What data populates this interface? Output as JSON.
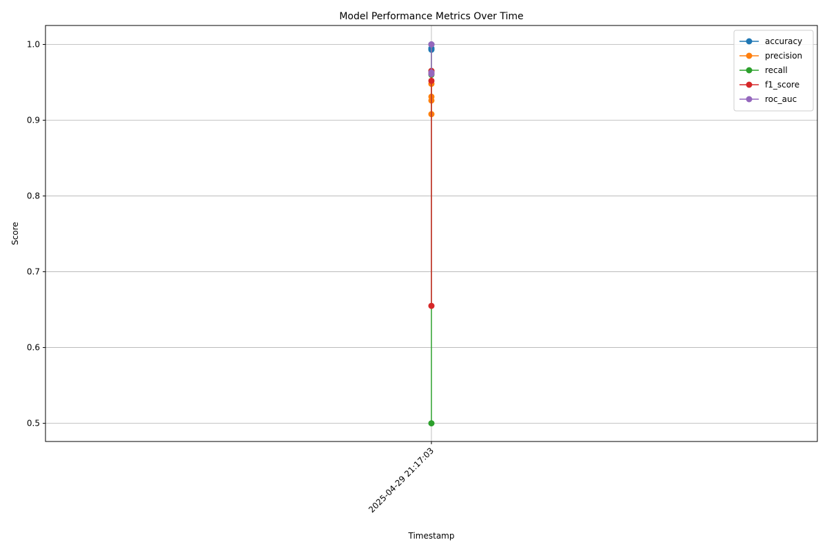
{
  "chart_data": {
    "type": "line",
    "title": "Model Performance Metrics Over Time",
    "x_label": "Timestamp",
    "y_label": "Score",
    "x": [
      "2025-04-29 21:17:03",
      "2025-04-29 21:17:03",
      "2025-04-29 21:17:03",
      "2025-04-29 21:17:03"
    ],
    "xticks": [
      "2025-04-29 21:17:03"
    ],
    "series": [
      {
        "name": "accuracy",
        "color": "#1f77b4",
        "values": [
          0.993,
          0.995,
          0.994,
          1.0
        ]
      },
      {
        "name": "precision",
        "color": "#ff7f0e",
        "values": [
          0.908,
          0.931,
          0.926,
          0.948
        ]
      },
      {
        "name": "recall",
        "color": "#2ca02c",
        "values": [
          0.5,
          0.965,
          0.96,
          1.0
        ]
      },
      {
        "name": "f1_score",
        "color": "#d62728",
        "values": [
          0.655,
          0.952,
          0.965,
          0.962
        ]
      },
      {
        "name": "roc_auc",
        "color": "#9467bd",
        "values": [
          1.0,
          0.961,
          0.963,
          1.0
        ]
      }
    ],
    "ylim": [
      0.476,
      1.025
    ],
    "yticks": [
      {
        "value": 0.5,
        "label": "0.5"
      },
      {
        "value": 0.6,
        "label": "0.6"
      },
      {
        "value": 0.7,
        "label": "0.7"
      },
      {
        "value": 0.8,
        "label": "0.8"
      },
      {
        "value": 0.9,
        "label": "0.9"
      },
      {
        "value": 1.0,
        "label": "1.0"
      }
    ],
    "grid": true,
    "legend": "upper right"
  }
}
